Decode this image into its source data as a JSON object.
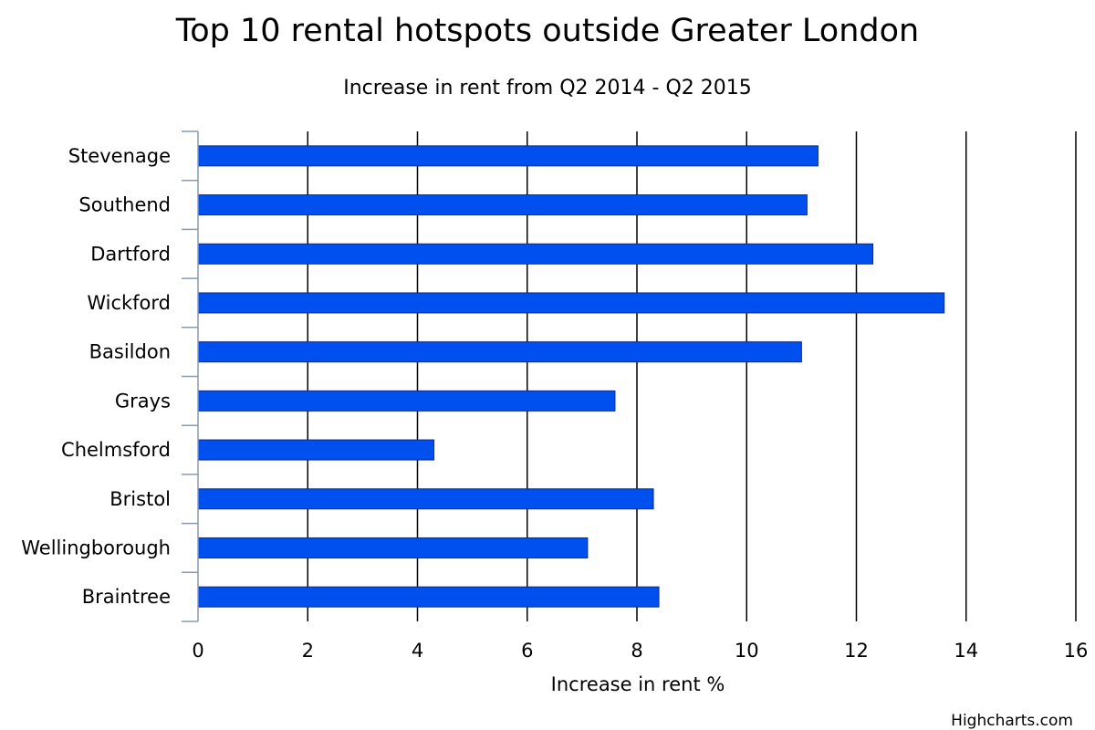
{
  "chart_data": {
    "type": "bar",
    "orientation": "horizontal",
    "title": "Top 10 rental hotspots outside Greater London",
    "subtitle": "Increase in rent from Q2 2014 - Q2 2015",
    "categories": [
      "Stevenage",
      "Southend",
      "Dartford",
      "Wickford",
      "Basildon",
      "Grays",
      "Chelmsford",
      "Bristol",
      "Wellingborough",
      "Braintree"
    ],
    "values": [
      11.3,
      11.1,
      12.3,
      13.6,
      11.0,
      7.6,
      4.3,
      8.3,
      7.1,
      8.4
    ],
    "xlabel": "Increase in rent %",
    "ylabel": "",
    "xlim": [
      0,
      16
    ],
    "ticks": [
      "0",
      "2",
      "4",
      "6",
      "8",
      "10",
      "12",
      "14",
      "16"
    ],
    "grid": true,
    "legend": "none",
    "bar_color": "#0050f0",
    "bar_border_color": "#0a2a8a"
  },
  "credits": "Highcharts.com"
}
